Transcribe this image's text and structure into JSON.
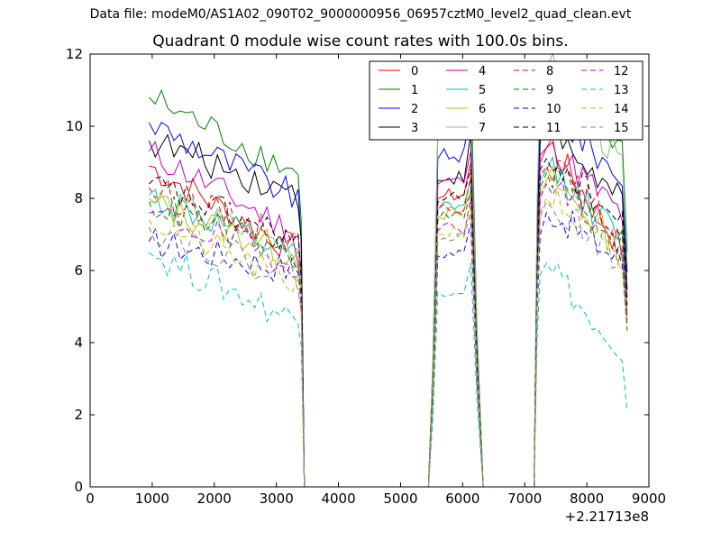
{
  "figure": {
    "suptitle": "Data file: modeM0/AS1A02_090T02_9000000956_06957cztM0_level2_quad_clean.evt",
    "title": "Quadrant 0 module wise count rates with 100.0s bins.",
    "offset_label": "+2.21713e8"
  },
  "chart_data": {
    "type": "line",
    "title": "Quadrant 0 module wise count rates with 100.0s bins.",
    "xlabel": "",
    "ylabel": "",
    "xlim": [
      0,
      9000
    ],
    "ylim": [
      0,
      12
    ],
    "x_ticks": [
      0,
      1000,
      2000,
      3000,
      4000,
      5000,
      6000,
      7000,
      8000,
      9000
    ],
    "x_tick_labels": [
      "0",
      "1000",
      "2000",
      "3000",
      "4000",
      "5000",
      "6000",
      "7000",
      "8000",
      "9000"
    ],
    "y_ticks": [
      0,
      2,
      4,
      6,
      8,
      10,
      12
    ],
    "y_tick_labels": [
      "0",
      "2",
      "4",
      "6",
      "8",
      "10",
      "12"
    ],
    "grid": false,
    "legend_position": "top-right",
    "legend_columns": 4,
    "series": [
      {
        "name": "0",
        "color": "#ff0000",
        "dash": false,
        "s1_start": 8.9,
        "s1_end": 6.5,
        "s2_level": 8.0,
        "s3_start": 9.0,
        "s3_end": 6.5,
        "s2_peak": 9.0,
        "s3_peak": 9.4
      },
      {
        "name": "1",
        "color": "#008000",
        "dash": false,
        "s1_start": 10.8,
        "s1_end": 8.7,
        "s2_level": 9.9,
        "s3_start": 11.0,
        "s3_end": 9.3,
        "s2_peak": 11.5,
        "s3_peak": 11.5
      },
      {
        "name": "2",
        "color": "#0000ff",
        "dash": false,
        "s1_start": 10.1,
        "s1_end": 8.0,
        "s2_level": 9.1,
        "s3_start": 10.2,
        "s3_end": 8.5,
        "s2_peak": 10.3,
        "s3_peak": 10.4
      },
      {
        "name": "3",
        "color": "#000000",
        "dash": false,
        "s1_start": 9.6,
        "s1_end": 8.1,
        "s2_level": 8.5,
        "s3_start": 9.6,
        "s3_end": 7.8,
        "s2_peak": 9.8,
        "s3_peak": 9.8
      },
      {
        "name": "4",
        "color": "#bf00bf",
        "dash": false,
        "s1_start": 9.3,
        "s1_end": 7.0,
        "s2_level": 8.4,
        "s3_start": 9.2,
        "s3_end": 7.5,
        "s2_peak": 9.3,
        "s3_peak": 9.4
      },
      {
        "name": "5",
        "color": "#00bfbf",
        "dash": false,
        "s1_start": 8.1,
        "s1_end": 6.3,
        "s2_level": 7.7,
        "s3_start": 8.5,
        "s3_end": 6.8,
        "s2_peak": 8.5,
        "s3_peak": 8.8
      },
      {
        "name": "6",
        "color": "#bfbf00",
        "dash": false,
        "s1_start": 7.9,
        "s1_end": 6.4,
        "s2_level": 7.5,
        "s3_start": 8.1,
        "s3_end": 6.5,
        "s2_peak": 8.2,
        "s3_peak": 8.5
      },
      {
        "name": "7",
        "color": "#80c080",
        "dash": false,
        "s1_start": 8.0,
        "s1_end": 6.6,
        "s2_level": 9.8,
        "s3_start": 11.3,
        "s3_end": 8.8,
        "s2_peak": 10.5,
        "s3_peak": 11.6
      },
      {
        "name": "8",
        "color": "#ff0000",
        "dash": true,
        "s1_start": 8.3,
        "s1_end": 6.8,
        "s2_level": 7.7,
        "s3_start": 8.6,
        "s3_end": 7.0,
        "s2_peak": 8.6,
        "s3_peak": 8.9
      },
      {
        "name": "9",
        "color": "#008000",
        "dash": true,
        "s1_start": 7.9,
        "s1_end": 6.3,
        "s2_level": 7.4,
        "s3_start": 8.3,
        "s3_end": 6.7,
        "s2_peak": 8.2,
        "s3_peak": 8.7
      },
      {
        "name": "10",
        "color": "#0000ff",
        "dash": true,
        "s1_start": 6.8,
        "s1_end": 6.0,
        "s2_level": 6.4,
        "s3_start": 7.0,
        "s3_end": 6.2,
        "s2_peak": 7.3,
        "s3_peak": 7.6
      },
      {
        "name": "11",
        "color": "#000000",
        "dash": true,
        "s1_start": 8.4,
        "s1_end": 6.8,
        "s2_level": 7.9,
        "s3_start": 8.8,
        "s3_end": 7.2,
        "s2_peak": 8.8,
        "s3_peak": 9.1
      },
      {
        "name": "12",
        "color": "#bf00bf",
        "dash": true,
        "s1_start": 7.6,
        "s1_end": 6.2,
        "s2_level": 7.1,
        "s3_start": 8.0,
        "s3_end": 6.6,
        "s2_peak": 8.0,
        "s3_peak": 8.4
      },
      {
        "name": "13",
        "color": "#00bfbf",
        "dash": true,
        "s1_start": 6.5,
        "s1_end": 4.6,
        "s2_level": 5.4,
        "s3_start": 5.9,
        "s3_end": 3.0,
        "s2_peak": 6.2,
        "s3_peak": 6.2
      },
      {
        "name": "14",
        "color": "#bfbf00",
        "dash": true,
        "s1_start": 7.4,
        "s1_end": 5.6,
        "s2_level": 7.0,
        "s3_start": 7.6,
        "s3_end": 6.0,
        "s2_peak": 7.8,
        "s3_peak": 8.0
      },
      {
        "name": "15",
        "color": "#808080",
        "dash": true,
        "s1_start": 7.2,
        "s1_end": 5.8,
        "s2_level": 6.8,
        "s3_start": 7.5,
        "s3_end": 6.2,
        "s2_peak": 7.6,
        "s3_peak": 7.9
      }
    ]
  }
}
